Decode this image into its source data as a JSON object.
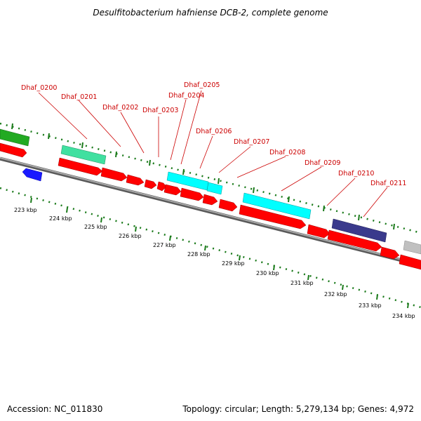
{
  "title": "Desulfitobacterium hafniense DCB-2, complete genome",
  "footer": {
    "accession": "Accession: NC_011830",
    "info": "Topology: circular; Length: 5,279,134 bp; Genes: 4,972"
  },
  "colors": {
    "cds_forward": "#ff0000",
    "cds_reverse": "#ff0000",
    "trna": "#00ffff",
    "rrna": "#40e0a0",
    "other_feature": "#3a3a8c",
    "blue_feature": "#1a1aff",
    "green_feature": "#22aa22",
    "gray_feature": "#c0c0c0",
    "label_color": "#cc0000",
    "tick_color": "#1a7a1a",
    "backbone": "#808080"
  },
  "gene_labels": [
    "Dhaf_0200",
    "Dhaf_0201",
    "Dhaf_0202",
    "Dhaf_0203",
    "Dhaf_0204",
    "Dhaf_0205",
    "Dhaf_0206",
    "Dhaf_0207",
    "Dhaf_0208",
    "Dhaf_0209",
    "Dhaf_0210",
    "Dhaf_0211"
  ],
  "kbp_labels": [
    "223 kbp",
    "224 kbp",
    "225 kbp",
    "226 kbp",
    "227 kbp",
    "228 kbp",
    "229 kbp",
    "230 kbp",
    "231 kbp",
    "232 kbp",
    "233 kbp",
    "234 kbp"
  ]
}
